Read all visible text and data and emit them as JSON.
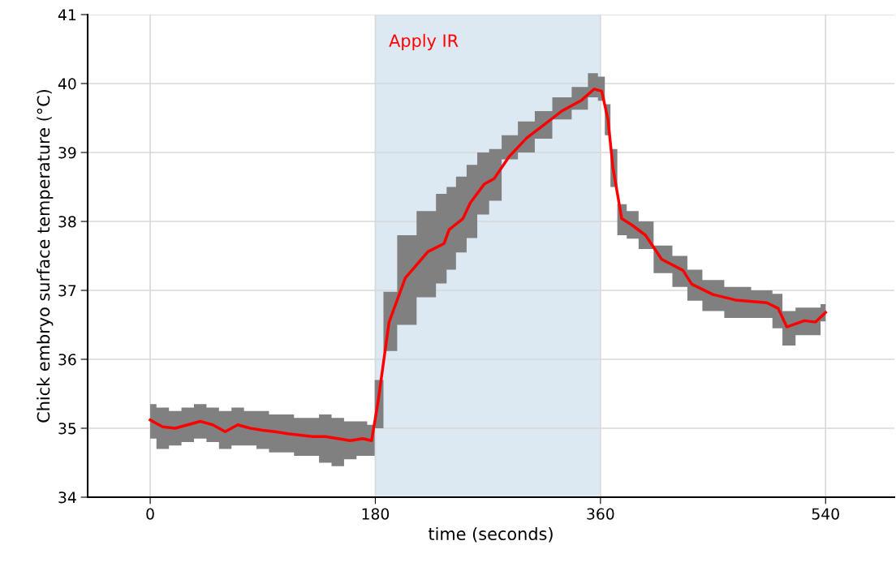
{
  "chart_data": {
    "type": "line",
    "xlabel": "time (seconds)",
    "ylabel": "Chick embryo surface temperature (°C)",
    "xlim": [
      -50,
      595
    ],
    "xticks": [
      0,
      180,
      360,
      540
    ],
    "ylim": [
      34,
      41
    ],
    "yticks": [
      34,
      35,
      36,
      37,
      38,
      39,
      40,
      41
    ],
    "grid": true,
    "bands": [
      {
        "axis": "x",
        "from": 180,
        "to": 360,
        "label": "Apply IR",
        "color": "#dce8f2"
      }
    ],
    "series": [
      {
        "color": "#ff0000",
        "x": [
          0,
          10,
          20,
          30,
          40,
          50,
          60,
          70,
          80,
          90,
          100,
          110,
          120,
          130,
          140,
          150,
          160,
          170,
          177,
          182,
          191,
          204,
          222,
          235,
          239,
          250,
          256,
          267,
          275,
          287,
          301,
          314,
          329,
          345,
          355,
          361,
          366,
          370,
          377,
          385,
          396,
          409,
          426,
          433,
          450,
          468,
          493,
          502,
          509,
          523,
          532,
          540
        ],
        "values": [
          35.12,
          35.02,
          35.0,
          35.05,
          35.1,
          35.05,
          34.95,
          35.05,
          35.0,
          34.97,
          34.95,
          34.92,
          34.9,
          34.88,
          34.88,
          34.85,
          34.82,
          34.85,
          34.82,
          35.36,
          36.54,
          37.18,
          37.56,
          37.68,
          37.88,
          38.04,
          38.27,
          38.54,
          38.62,
          38.94,
          39.21,
          39.39,
          39.6,
          39.76,
          39.92,
          39.89,
          39.48,
          38.78,
          38.04,
          37.95,
          37.8,
          37.45,
          37.29,
          37.09,
          36.94,
          36.86,
          36.82,
          36.74,
          36.47,
          36.56,
          36.54,
          36.68
        ],
        "lower": [
          34.85,
          34.7,
          34.75,
          34.8,
          34.85,
          34.8,
          34.7,
          34.75,
          34.75,
          34.7,
          34.65,
          34.65,
          34.6,
          34.6,
          34.5,
          34.45,
          34.55,
          34.6,
          34.6,
          35.0,
          36.12,
          36.5,
          36.9,
          37.1,
          37.3,
          37.55,
          37.76,
          38.1,
          38.3,
          38.9,
          39.0,
          39.2,
          39.48,
          39.62,
          39.8,
          39.75,
          39.25,
          38.5,
          37.8,
          37.75,
          37.6,
          37.25,
          37.05,
          36.85,
          36.7,
          36.6,
          36.6,
          36.45,
          36.2,
          36.35,
          36.35,
          36.55
        ],
        "upper": [
          35.35,
          35.3,
          35.25,
          35.3,
          35.35,
          35.3,
          35.25,
          35.3,
          35.25,
          35.25,
          35.2,
          35.2,
          35.15,
          35.15,
          35.2,
          35.15,
          35.1,
          35.1,
          35.05,
          35.7,
          36.98,
          37.8,
          38.15,
          38.4,
          38.5,
          38.65,
          38.82,
          39.0,
          39.05,
          39.25,
          39.45,
          39.6,
          39.8,
          39.95,
          40.15,
          40.1,
          39.7,
          39.05,
          38.25,
          38.15,
          38.0,
          37.65,
          37.5,
          37.3,
          37.15,
          37.05,
          37.0,
          36.95,
          36.7,
          36.75,
          36.75,
          36.8
        ]
      }
    ]
  }
}
